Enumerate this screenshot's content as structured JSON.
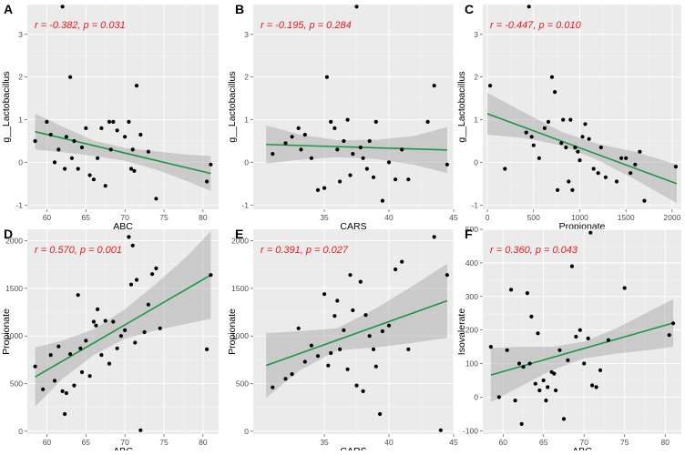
{
  "chart_data": [
    {
      "panel": "A",
      "type": "scatter",
      "title": "",
      "xlabel": "ABC",
      "ylabel": "g__Lactobacillus",
      "stat": "r = -0.382, p = 0.031",
      "xlim": [
        57.5,
        82
      ],
      "ylim": [
        -1.1,
        3.7
      ],
      "xticks": [
        60,
        65,
        70,
        75,
        80
      ],
      "xtick_labels": [
        "60",
        "65",
        "70",
        "75",
        "80"
      ],
      "yticks": [
        -1,
        0,
        1,
        2,
        3
      ],
      "ytick_labels": [
        "-1",
        "0",
        "1",
        "2",
        "3"
      ],
      "fit": {
        "x": [
          58.5,
          81
        ],
        "y": [
          0.72,
          -0.26
        ]
      },
      "ci": {
        "x": [
          58.5,
          62,
          66,
          70,
          74,
          78,
          81
        ],
        "lower": [
          0.3,
          0.24,
          0.15,
          0.04,
          -0.17,
          -0.44,
          -0.67
        ],
        "upper": [
          1.14,
          0.84,
          0.51,
          0.34,
          0.26,
          0.18,
          0.15
        ]
      },
      "x": [
        58.5,
        60,
        60.5,
        61,
        61.5,
        62,
        62.3,
        62.5,
        63,
        63.2,
        63.5,
        64,
        64.5,
        65,
        65.5,
        66,
        66.5,
        67,
        67.5,
        68,
        68.2,
        68.5,
        69,
        70,
        70.5,
        70.8,
        71,
        71.2,
        71.5,
        72,
        73,
        74,
        80.5,
        81
      ],
      "y": [
        0.5,
        0.95,
        0.65,
        0.0,
        0.3,
        3.65,
        -0.15,
        0.6,
        2.0,
        0.1,
        0.5,
        -0.15,
        0.35,
        0.8,
        -0.3,
        -0.4,
        0.1,
        0.8,
        -0.55,
        0.95,
        0.3,
        0.95,
        0.75,
        0.6,
        0.95,
        -0.15,
        0.3,
        -0.2,
        1.8,
        0.65,
        0.25,
        -0.85,
        -0.45,
        -0.05
      ]
    },
    {
      "panel": "B",
      "type": "scatter",
      "title": "",
      "xlabel": "CARS",
      "ylabel": "g__Lactobacillus",
      "stat": "r = -0.195, p = 0.284",
      "xlim": [
        29.5,
        45
      ],
      "ylim": [
        -1.1,
        3.7
      ],
      "xticks": [
        35,
        40,
        45
      ],
      "xtick_labels": [
        "35",
        "40",
        "45"
      ],
      "yticks": [
        -1,
        0,
        1,
        2,
        3
      ],
      "ytick_labels": [
        "-1",
        "0",
        "1",
        "2",
        "3"
      ],
      "fit": {
        "x": [
          30.5,
          44.5
        ],
        "y": [
          0.42,
          0.29
        ]
      },
      "ci": {
        "x": [
          30.5,
          33,
          36,
          39,
          42,
          44.5
        ],
        "lower": [
          -0.03,
          0.06,
          0.12,
          0.08,
          -0.06,
          -0.25
        ],
        "upper": [
          0.87,
          0.66,
          0.52,
          0.53,
          0.62,
          0.83
        ]
      },
      "x": [
        31,
        32,
        32.5,
        33,
        33.2,
        33.5,
        34,
        34.5,
        35,
        35.2,
        35.5,
        35.8,
        36,
        36.2,
        36.5,
        36.8,
        37,
        37.2,
        37.5,
        37.8,
        38,
        38.3,
        38.5,
        38.8,
        39,
        39.5,
        40,
        40.5,
        41,
        41.5,
        43,
        43.5,
        44.5
      ],
      "y": [
        0.2,
        0.45,
        0.6,
        0.8,
        0.3,
        0.65,
        0.1,
        -0.65,
        -0.6,
        2.0,
        0.95,
        0.8,
        0.3,
        -0.45,
        0.5,
        1.0,
        -0.3,
        0.2,
        3.65,
        0.35,
        0.1,
        -0.15,
        0.5,
        -0.35,
        0.95,
        -0.9,
        0.0,
        -0.4,
        0.3,
        -0.4,
        0.95,
        1.8,
        -0.05
      ]
    },
    {
      "panel": "C",
      "type": "scatter",
      "title": "",
      "xlabel": "Propionate",
      "ylabel": "g__Lactobacillus",
      "stat": "r = -0.447, p = 0.010",
      "xlim": [
        -50,
        2100
      ],
      "ylim": [
        -1.1,
        3.7
      ],
      "xticks": [
        0,
        500,
        1000,
        1500,
        2000
      ],
      "xtick_labels": [
        "0",
        "500",
        "1000",
        "1500",
        "2000"
      ],
      "yticks": [
        -1,
        0,
        1,
        2,
        3
      ],
      "ytick_labels": [
        "-1",
        "0",
        "1",
        "2",
        "3"
      ],
      "fit": {
        "x": [
          0,
          2050
        ],
        "y": [
          1.14,
          -0.5
        ]
      },
      "ci": {
        "x": [
          0,
          400,
          800,
          1200,
          1600,
          2050
        ],
        "lower": [
          0.65,
          0.57,
          0.4,
          0.05,
          -0.4,
          -0.95
        ],
        "upper": [
          1.63,
          1.17,
          0.72,
          0.43,
          0.25,
          -0.05
        ]
      },
      "x": [
        30,
        190,
        420,
        450,
        480,
        500,
        560,
        620,
        660,
        700,
        730,
        760,
        800,
        820,
        850,
        880,
        900,
        920,
        950,
        980,
        1000,
        1030,
        1060,
        1100,
        1150,
        1200,
        1230,
        1280,
        1400,
        1450,
        1500,
        1550,
        1600,
        1650,
        1700,
        2040
      ],
      "y": [
        1.8,
        -0.15,
        0.7,
        3.65,
        0.6,
        0.4,
        0.1,
        0.8,
        0.95,
        2.0,
        1.65,
        -0.65,
        0.45,
        1.0,
        0.35,
        -0.45,
        1.0,
        -0.65,
        0.35,
        0.25,
        0.05,
        0.6,
        0.9,
        0.55,
        -0.15,
        -0.25,
        0.35,
        -0.35,
        -0.45,
        0.1,
        0.1,
        -0.25,
        -0.05,
        0.25,
        -0.9,
        -0.1
      ]
    },
    {
      "panel": "D",
      "type": "scatter",
      "title": "",
      "xlabel": "ABC",
      "ylabel": "Propionate",
      "stat": "r = 0.570, p = 0.001",
      "xlim": [
        57.5,
        82
      ],
      "ylim": [
        -30,
        2120
      ],
      "xticks": [
        60,
        65,
        70,
        75,
        80
      ],
      "xtick_labels": [
        "60",
        "65",
        "70",
        "75",
        "80"
      ],
      "yticks": [
        0,
        500,
        1000,
        1500,
        2000
      ],
      "ytick_labels": [
        "0",
        "500",
        "1000",
        "1500",
        "2000"
      ],
      "fit": {
        "x": [
          58.5,
          81
        ],
        "y": [
          570,
          1640
        ]
      },
      "ci": {
        "x": [
          58.5,
          62,
          66,
          70,
          74,
          78,
          81
        ],
        "lower": [
          260,
          550,
          800,
          970,
          1060,
          1130,
          1180
        ],
        "upper": [
          880,
          950,
          1070,
          1280,
          1550,
          1840,
          2100
        ]
      },
      "x": [
        58.5,
        59.5,
        60.5,
        61,
        61.5,
        62,
        62.3,
        62.5,
        63,
        63.5,
        64,
        64.3,
        64.5,
        65,
        65.5,
        66,
        66.3,
        66.5,
        67,
        67.5,
        68,
        68.5,
        69,
        69.5,
        70,
        70.5,
        70.8,
        71,
        71.3,
        71.5,
        72,
        72.5,
        73,
        73.5,
        74,
        74.5,
        81,
        80.5
      ],
      "y": [
        680,
        440,
        800,
        530,
        890,
        420,
        180,
        400,
        810,
        480,
        1430,
        870,
        620,
        950,
        580,
        1150,
        1110,
        1280,
        800,
        1160,
        710,
        1150,
        870,
        1000,
        1060,
        2040,
        1540,
        1950,
        930,
        1590,
        10,
        1040,
        1330,
        1650,
        1710,
        1080,
        1640,
        860
      ]
    },
    {
      "panel": "E",
      "type": "scatter",
      "title": "",
      "xlabel": "CARS",
      "ylabel": "Propionate",
      "stat": "r = 0.391, p = 0.027",
      "xlim": [
        29.5,
        45
      ],
      "ylim": [
        -30,
        2120
      ],
      "xticks": [
        35,
        40,
        45
      ],
      "xtick_labels": [
        "35",
        "40",
        "45"
      ],
      "yticks": [
        0,
        500,
        1000,
        1500,
        2000
      ],
      "ytick_labels": [
        "0",
        "500",
        "1000",
        "1500",
        "2000"
      ],
      "fit": {
        "x": [
          30.5,
          44.5
        ],
        "y": [
          690,
          1370
        ]
      },
      "ci": {
        "x": [
          30.5,
          33,
          36,
          39,
          42,
          44.5
        ],
        "lower": [
          350,
          630,
          850,
          880,
          930,
          980
        ],
        "upper": [
          1030,
          1050,
          1080,
          1290,
          1540,
          1760
        ]
      },
      "x": [
        31,
        32,
        32.5,
        33,
        33.5,
        34,
        34.5,
        35,
        35.3,
        35.5,
        35.8,
        36,
        36.2,
        36.5,
        36.8,
        37,
        37.2,
        37.5,
        37.8,
        38,
        38.2,
        38.5,
        38.8,
        39,
        39.3,
        39.5,
        40,
        40.5,
        41,
        41.5,
        43.5,
        44,
        44.5
      ],
      "y": [
        460,
        550,
        600,
        1080,
        730,
        900,
        790,
        1440,
        690,
        820,
        1210,
        1370,
        860,
        1060,
        650,
        1640,
        1270,
        480,
        1570,
        420,
        1220,
        1000,
        860,
        680,
        180,
        1050,
        1110,
        1700,
        1780,
        860,
        2040,
        10,
        1640
      ]
    },
    {
      "panel": "F",
      "type": "scatter",
      "title": "",
      "xlabel": "ABC",
      "ylabel": "Isovalerate",
      "stat": "r = 0.360, p = 0.043",
      "xlim": [
        57.5,
        82
      ],
      "ylim": [
        -110,
        500
      ],
      "xticks": [
        60,
        65,
        70,
        75,
        80
      ],
      "xtick_labels": [
        "60",
        "65",
        "70",
        "75",
        "80"
      ],
      "yticks": [
        -100,
        0,
        100,
        200,
        300,
        400,
        500
      ],
      "ytick_labels": [
        "-100",
        "0",
        "100",
        "200",
        "300",
        "400",
        "500"
      ],
      "fit": {
        "x": [
          58.5,
          81
        ],
        "y": [
          66,
          221
        ]
      },
      "ci": {
        "x": [
          58.5,
          62,
          66,
          70,
          74,
          78,
          81
        ],
        "lower": [
          -15,
          30,
          80,
          115,
          130,
          140,
          150
        ],
        "upper": [
          147,
          150,
          150,
          165,
          205,
          255,
          292
        ]
      },
      "x": [
        58.5,
        59.5,
        60.5,
        61,
        61.5,
        62,
        62.3,
        62.5,
        63,
        63.3,
        63.5,
        64,
        64.3,
        64.5,
        65,
        65.3,
        65.5,
        66,
        66.3,
        66.5,
        67,
        67.5,
        68,
        68.5,
        69,
        69.5,
        70,
        70.5,
        70.8,
        71,
        71.5,
        72,
        73,
        75,
        80.5,
        81
      ],
      "y": [
        150,
        0,
        140,
        320,
        -10,
        100,
        -80,
        90,
        310,
        100,
        240,
        40,
        190,
        20,
        50,
        -10,
        30,
        75,
        70,
        20,
        140,
        -65,
        110,
        390,
        180,
        200,
        100,
        175,
        490,
        35,
        30,
        80,
        170,
        325,
        185,
        220
      ]
    }
  ]
}
